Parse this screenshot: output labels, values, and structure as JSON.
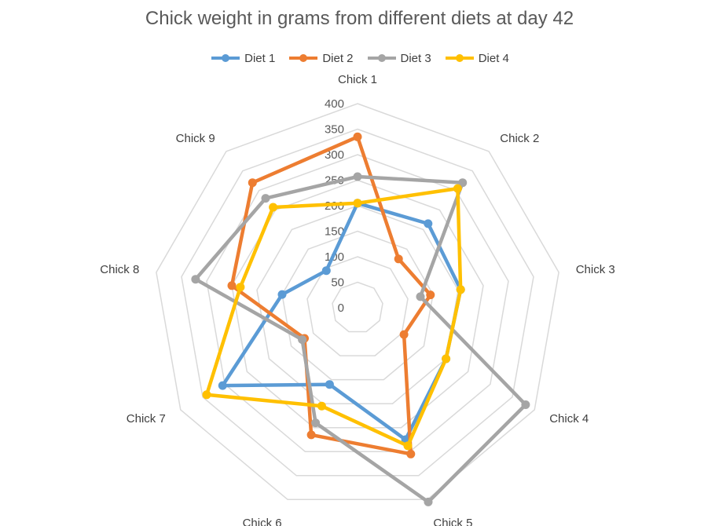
{
  "chart_data": {
    "type": "radar",
    "title": "Chick weight in grams from different diets at day 42",
    "categories": [
      "Chick 1",
      "Chick 2",
      "Chick 3",
      "Chick 4",
      "Chick 5",
      "Chick 6",
      "Chick 7",
      "Chick 8",
      "Chick 9"
    ],
    "rlim": [
      0,
      400
    ],
    "r_ticks": [
      "0",
      "50",
      "100",
      "150",
      "200",
      "250",
      "300",
      "350",
      "400"
    ],
    "grid": true,
    "legend_position": "top",
    "series": [
      {
        "name": "Diet 1",
        "color": "#5b9bd5",
        "values": [
          205,
          215,
          205,
          200,
          275,
          160,
          305,
          150,
          95
        ]
      },
      {
        "name": "Diet 2",
        "color": "#ed7d31",
        "values": [
          335,
          125,
          145,
          105,
          305,
          265,
          120,
          250,
          320
        ]
      },
      {
        "name": "Diet 3",
        "color": "#a5a5a5",
        "values": [
          257,
          320,
          125,
          380,
          405,
          240,
          125,
          322,
          280
        ]
      },
      {
        "name": "Diet 4",
        "color": "#ffc000",
        "values": [
          205,
          305,
          205,
          200,
          288,
          205,
          341,
          233,
          257
        ]
      }
    ]
  }
}
